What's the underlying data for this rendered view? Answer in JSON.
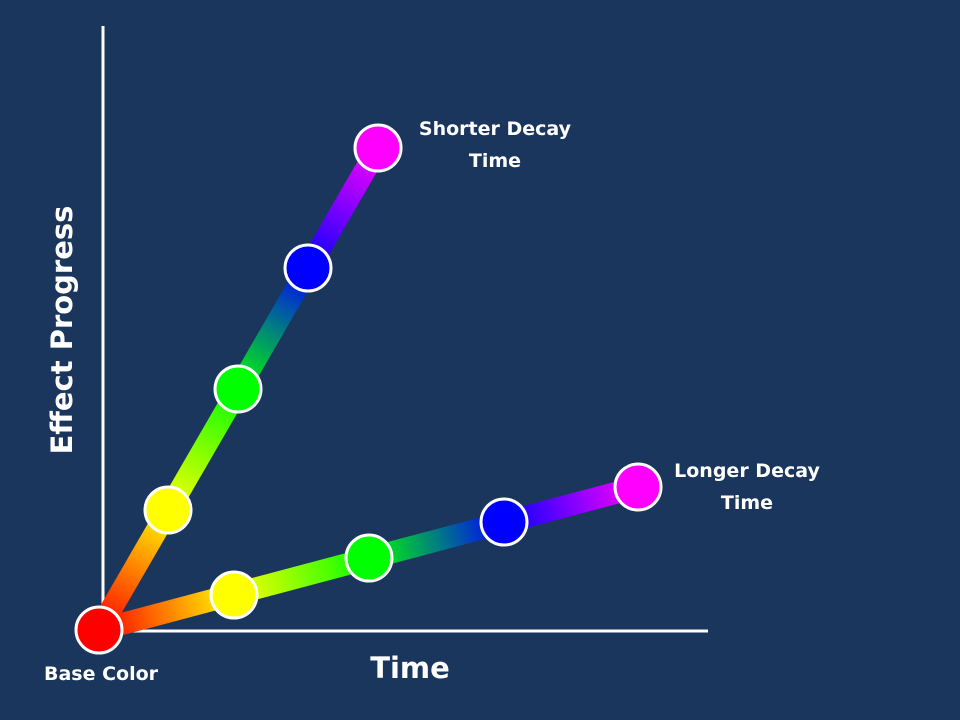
{
  "axes": {
    "y_label": "Effect Progress",
    "x_label": "Time"
  },
  "base": {
    "label": "Base Color",
    "color": "#ff0000"
  },
  "paths": [
    {
      "id": "shorter",
      "label_line1": "Shorter Decay",
      "label_line2": "Time",
      "stops": [
        "#ff0000",
        "#ffff00",
        "#00ff00",
        "#0000ff",
        "#ff00ff"
      ]
    },
    {
      "id": "longer",
      "label_line1": "Longer Decay",
      "label_line2": "Time",
      "stops": [
        "#ff0000",
        "#ffff00",
        "#00ff00",
        "#0000ff",
        "#ff00ff"
      ]
    }
  ],
  "colors": {
    "background": "#1b365d",
    "axis": "#ffffff",
    "node_border": "#ffffff"
  }
}
